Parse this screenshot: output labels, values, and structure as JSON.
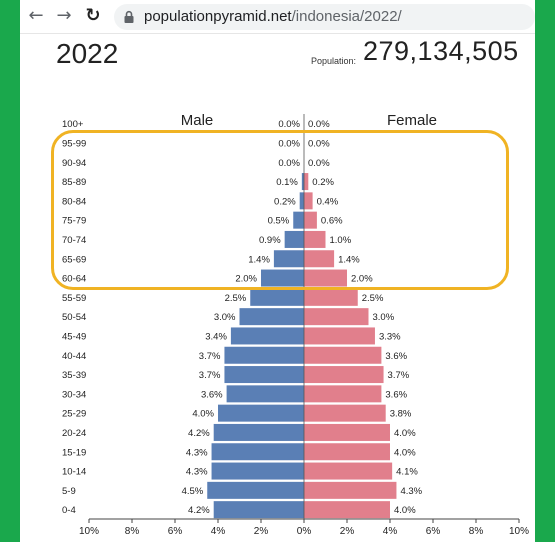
{
  "browser": {
    "url_domain": "populationpyramid.net",
    "url_path": "/indonesia/2022/",
    "icons": [
      "back-arrow-icon",
      "forward-arrow-icon",
      "reload-icon",
      "lock-icon"
    ]
  },
  "header": {
    "year": "2022",
    "population_label": "Population:",
    "population_value": "279,134,505"
  },
  "colors": {
    "male": "#5a7fb5",
    "female": "#e17f8c",
    "highlight": "#f0b323",
    "frame": "#1aa84c"
  },
  "chart_data": {
    "type": "bar",
    "orientation": "horizontal-diverging",
    "series_labels": {
      "male": "Male",
      "female": "Female"
    },
    "categories": [
      "100+",
      "95-99",
      "90-94",
      "85-89",
      "80-84",
      "75-79",
      "70-74",
      "65-69",
      "60-64",
      "55-59",
      "50-54",
      "45-49",
      "40-44",
      "35-39",
      "30-34",
      "25-29",
      "20-24",
      "15-19",
      "10-14",
      "5-9",
      "0-4"
    ],
    "male": [
      0.0,
      0.0,
      0.0,
      0.1,
      0.2,
      0.5,
      0.9,
      1.4,
      2.0,
      2.5,
      3.0,
      3.4,
      3.7,
      3.7,
      3.6,
      4.0,
      4.2,
      4.3,
      4.3,
      4.5,
      4.2
    ],
    "female": [
      0.0,
      0.0,
      0.0,
      0.2,
      0.4,
      0.6,
      1.0,
      1.4,
      2.0,
      2.5,
      3.0,
      3.3,
      3.6,
      3.7,
      3.6,
      3.8,
      4.0,
      4.0,
      4.1,
      4.3,
      4.0
    ],
    "value_labels_male": [
      "0.0%",
      "0.0%",
      "0.0%",
      "0.1%",
      "0.2%",
      "0.5%",
      "0.9%",
      "1.4%",
      "2.0%",
      "2.5%",
      "3.0%",
      "3.4%",
      "3.7%",
      "3.7%",
      "3.6%",
      "4.0%",
      "4.2%",
      "4.3%",
      "4.3%",
      "4.5%",
      "4.2%"
    ],
    "value_labels_female": [
      "0.0%",
      "0.0%",
      "0.0%",
      "0.2%",
      "0.4%",
      "0.6%",
      "1.0%",
      "1.4%",
      "2.0%",
      "2.5%",
      "3.0%",
      "3.3%",
      "3.6%",
      "3.7%",
      "3.6%",
      "3.8%",
      "4.0%",
      "4.0%",
      "4.1%",
      "4.3%",
      "4.0%"
    ],
    "x_ticks": [
      "10%",
      "8%",
      "6%",
      "4%",
      "2%",
      "0%",
      "2%",
      "4%",
      "6%",
      "8%",
      "10%"
    ],
    "xlim": [
      -10,
      10
    ],
    "highlighted_range": [
      "95-99",
      "60-64"
    ]
  }
}
